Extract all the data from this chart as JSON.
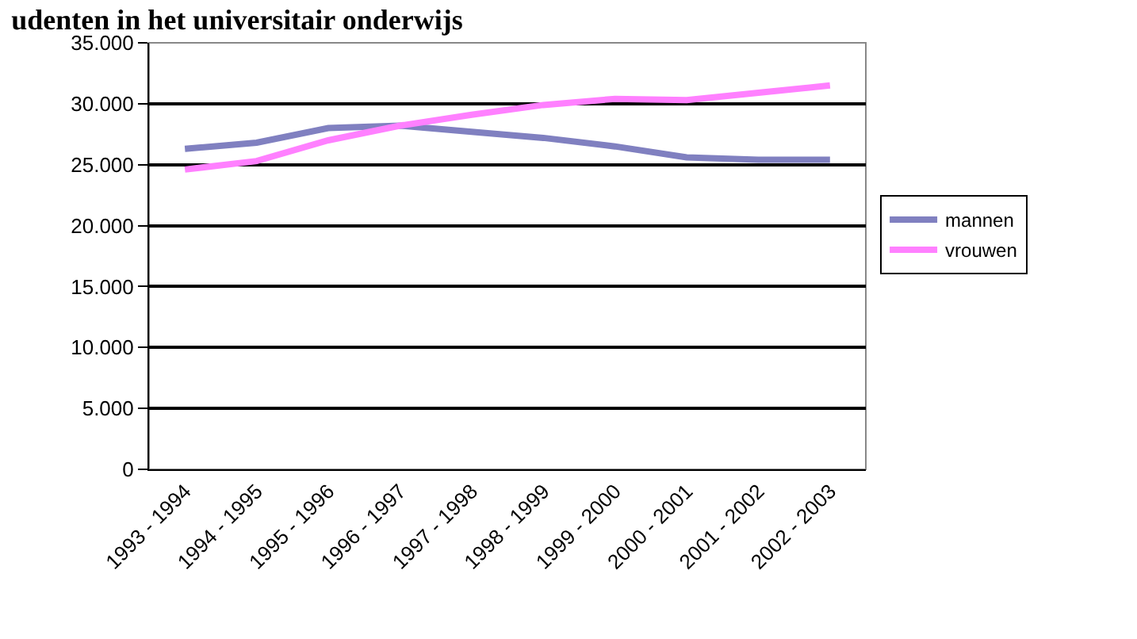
{
  "chart_data": {
    "type": "line",
    "title": "udenten in het universitair onderwijs",
    "categories": [
      "1993 - 1994",
      "1994 - 1995",
      "1995 - 1996",
      "1996 - 1997",
      "1997 - 1998",
      "1998 - 1999",
      "1999 - 2000",
      "2000 - 2001",
      "2001 - 2002",
      "2002 - 2003"
    ],
    "series": [
      {
        "name": "mannen",
        "color": "#8080c0",
        "values": [
          26300,
          26800,
          28000,
          28200,
          27700,
          27200,
          26500,
          25600,
          25400,
          25400
        ]
      },
      {
        "name": "vrouwen",
        "color": "#ff80ff",
        "values": [
          24600,
          25300,
          27000,
          28200,
          29100,
          29900,
          30400,
          30300,
          30900,
          31500
        ]
      }
    ],
    "ylim": [
      0,
      35000
    ],
    "yticks": [
      {
        "value": 0,
        "label": "0"
      },
      {
        "value": 5000,
        "label": "5.000"
      },
      {
        "value": 10000,
        "label": "10.000"
      },
      {
        "value": 15000,
        "label": "15.000"
      },
      {
        "value": 20000,
        "label": "20.000"
      },
      {
        "value": 25000,
        "label": "25.000"
      },
      {
        "value": 30000,
        "label": "30.000"
      },
      {
        "value": 35000,
        "label": "35.000"
      }
    ],
    "grid": "y",
    "legend": "right",
    "marker": "none",
    "line_style": "solid"
  }
}
